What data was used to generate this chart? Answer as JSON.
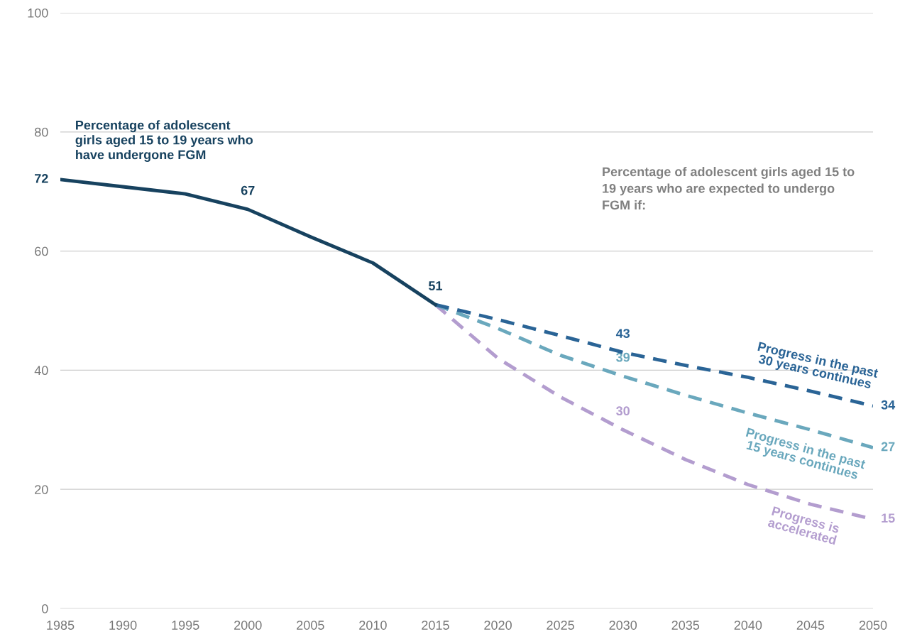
{
  "chart_data": {
    "type": "line",
    "x": [
      1985,
      1990,
      1995,
      2000,
      2005,
      2010,
      2015,
      2020,
      2025,
      2030,
      2035,
      2040,
      2045,
      2050
    ],
    "xlim": [
      1985,
      2050
    ],
    "xticks": [
      1985,
      1990,
      1995,
      2000,
      2005,
      2010,
      2015,
      2020,
      2025,
      2030,
      2035,
      2040,
      2045,
      2050
    ],
    "ylim": [
      0,
      100
    ],
    "yticks": [
      0,
      20,
      40,
      60,
      80,
      100
    ],
    "grid": "y",
    "series": [
      {
        "name": "Percentage of adolescent girls aged 15 to 19 years who have undergone FGM",
        "color": "#17425f",
        "line_style": "solid",
        "values": [
          72,
          70.8,
          69.6,
          67,
          62.4,
          58,
          51,
          null,
          null,
          null,
          null,
          null,
          null,
          null
        ],
        "value_labels": [
          "72",
          null,
          null,
          "67",
          null,
          null,
          "51",
          null,
          null,
          null,
          null,
          null,
          null,
          null
        ]
      },
      {
        "name": "Progress in the past 30 years continues",
        "color": "#2a6496",
        "line_style": "dashed",
        "values": [
          null,
          null,
          null,
          null,
          null,
          null,
          51,
          48.5,
          45.8,
          43,
          40.8,
          38.8,
          36.5,
          34
        ],
        "value_labels": [
          null,
          null,
          null,
          null,
          null,
          null,
          null,
          null,
          null,
          "43",
          null,
          null,
          null,
          "34"
        ]
      },
      {
        "name": "Progress in the past 15 years continues",
        "color": "#6aa8bd",
        "line_style": "dashed",
        "values": [
          null,
          null,
          null,
          null,
          null,
          null,
          51,
          47,
          42.5,
          39,
          35.8,
          32.8,
          30,
          27
        ],
        "value_labels": [
          null,
          null,
          null,
          null,
          null,
          null,
          null,
          null,
          null,
          "39",
          null,
          null,
          null,
          "27"
        ]
      },
      {
        "name": "Progress is accelerated",
        "color": "#b39dcf",
        "line_style": "dashed",
        "values": [
          null,
          null,
          null,
          null,
          null,
          null,
          51,
          42,
          35.5,
          30,
          25,
          20.8,
          17.5,
          15
        ],
        "value_labels": [
          null,
          null,
          null,
          null,
          null,
          null,
          null,
          null,
          null,
          "30",
          null,
          null,
          null,
          "15"
        ]
      }
    ],
    "annotations": [
      "Percentage of adolescent girls aged 15 to 19 years who are expected to undergo FGM if:"
    ]
  }
}
